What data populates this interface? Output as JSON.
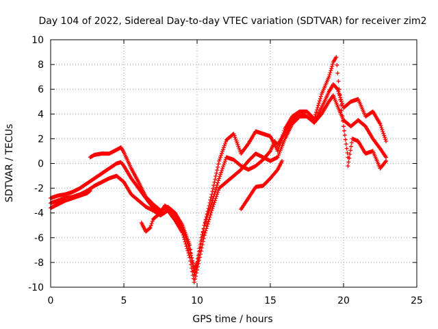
{
  "chart_data": {
    "type": "scatter",
    "title": "Day 104 of 2022, Sidereal Day-to-day VTEC variation (SDTVAR) for receiver zim2",
    "xlabel": "GPS time / hours",
    "ylabel": "SDTVAR / TECUs",
    "xlim": [
      0,
      25
    ],
    "ylim": [
      -10,
      10
    ],
    "x_ticks": [
      0,
      5,
      10,
      15,
      20,
      25
    ],
    "y_ticks": [
      -10,
      -8,
      -6,
      -4,
      -2,
      0,
      2,
      4,
      6,
      8,
      10
    ],
    "grid": true,
    "marker": "+",
    "color": "#ff0000",
    "series": [
      {
        "x": [
          0.0,
          0.5,
          1.0,
          1.5,
          2.0,
          2.5,
          3.0,
          3.5,
          4.0,
          4.5,
          4.8,
          5.0,
          5.5,
          6.0,
          6.5,
          7.0,
          7.5,
          7.8,
          8.0,
          8.5,
          9.0,
          9.5,
          9.8,
          10.0,
          10.3,
          10.5,
          11.0,
          11.5,
          12.0,
          12.5,
          13.0,
          13.5,
          14.0,
          14.5,
          15.0,
          15.3,
          15.5,
          16.0,
          16.5,
          17.0,
          17.5,
          18.0,
          18.5,
          19.0,
          19.3,
          19.6,
          20.0,
          20.5,
          21.0,
          21.5,
          22.0,
          22.5,
          22.9
        ],
        "y": [
          -2.8,
          -2.6,
          -2.5,
          -2.3,
          -2.0,
          -1.6,
          -1.2,
          -0.8,
          -0.4,
          0.0,
          0.1,
          -0.2,
          -1.2,
          -2.0,
          -2.8,
          -3.6,
          -4.0,
          -3.4,
          -3.6,
          -4.3,
          -5.2,
          -7.0,
          -8.5,
          -8.0,
          -6.0,
          -5.0,
          -3.2,
          -1.2,
          0.5,
          0.3,
          -0.2,
          -0.5,
          -0.2,
          0.3,
          1.0,
          1.8,
          1.5,
          2.5,
          3.5,
          4.0,
          3.8,
          3.3,
          4.0,
          5.0,
          5.5,
          4.6,
          3.5,
          3.0,
          3.5,
          3.0,
          2.0,
          1.2,
          0.5
        ]
      },
      {
        "x": [
          0.0,
          0.5,
          1.0,
          1.5,
          2.0,
          2.5,
          3.0,
          3.5,
          4.0,
          4.5,
          5.0,
          5.5,
          6.0,
          6.5,
          7.0,
          7.5,
          8.0,
          8.5,
          9.0,
          9.5,
          9.8,
          10.0,
          10.5,
          11.0,
          11.5,
          12.0,
          12.5,
          13.0,
          13.5,
          14.0,
          14.5,
          15.0,
          15.5,
          16.0,
          16.5,
          17.0,
          17.5,
          18.0,
          18.5,
          19.0,
          19.3,
          19.6,
          20.0,
          20.5,
          21.0,
          21.5,
          22.0,
          22.5,
          22.9
        ],
        "y": [
          -3.2,
          -3.0,
          -2.8,
          -2.7,
          -2.5,
          -2.2,
          -1.8,
          -1.5,
          -1.2,
          -1.0,
          -1.5,
          -2.5,
          -3.0,
          -3.5,
          -3.8,
          -4.2,
          -3.8,
          -4.6,
          -5.6,
          -7.6,
          -9.6,
          -8.6,
          -5.8,
          -3.8,
          -2.0,
          -1.5,
          -1.0,
          -0.5,
          0.2,
          0.8,
          0.5,
          0.2,
          0.5,
          2.0,
          3.2,
          3.8,
          3.8,
          3.3,
          4.5,
          5.8,
          6.4,
          6.0,
          4.5,
          5.0,
          5.2,
          3.8,
          4.2,
          3.2,
          1.8
        ]
      },
      {
        "x": [
          0.0,
          0.5,
          1.0,
          1.5,
          2.0,
          2.5,
          2.7
        ],
        "y": [
          -3.6,
          -3.3,
          -3.0,
          -2.8,
          -2.6,
          -2.4,
          -2.2
        ]
      },
      {
        "x": [
          2.7,
          3.0,
          3.5,
          4.0,
          4.5,
          4.8,
          5.0,
          5.5,
          6.0,
          6.5,
          7.0,
          7.5,
          8.0,
          8.5,
          9.0,
          9.5,
          9.8,
          10.0,
          10.5,
          11.0,
          11.5,
          12.0,
          12.5,
          13.0,
          13.5,
          14.0,
          14.5,
          15.0,
          15.3,
          15.5,
          16.0,
          16.5,
          17.0,
          17.5,
          18.0,
          18.5,
          19.0,
          19.3,
          19.5,
          19.7,
          20.0,
          20.3
        ],
        "y": [
          0.5,
          0.7,
          0.8,
          0.8,
          1.1,
          1.3,
          0.9,
          -0.4,
          -1.5,
          -2.7,
          -3.3,
          -3.8,
          -3.5,
          -4.0,
          -5.0,
          -6.6,
          -9.0,
          -8.2,
          -5.0,
          -2.5,
          0.2,
          1.9,
          2.4,
          0.8,
          1.6,
          2.6,
          2.4,
          2.2,
          1.5,
          1.0,
          2.8,
          3.8,
          4.2,
          4.2,
          3.6,
          5.6,
          7.0,
          8.2,
          8.6,
          6.0,
          3.0,
          0.5
        ]
      },
      {
        "x": [
          6.2,
          6.5,
          6.8,
          7.0,
          7.5
        ],
        "y": [
          -4.8,
          -5.5,
          -5.2,
          -4.5,
          -4.0
        ]
      },
      {
        "x": [
          13.0,
          13.5,
          14.0,
          14.5,
          15.0,
          15.5,
          15.8
        ],
        "y": [
          -3.7,
          -2.8,
          -1.9,
          -1.8,
          -1.2,
          -0.5,
          0.2
        ]
      },
      {
        "x": [
          20.3,
          20.6,
          21.0,
          21.5,
          22.0,
          22.5,
          22.9
        ],
        "y": [
          -0.2,
          2.0,
          1.8,
          0.8,
          1.0,
          -0.4,
          0.2
        ]
      }
    ]
  }
}
